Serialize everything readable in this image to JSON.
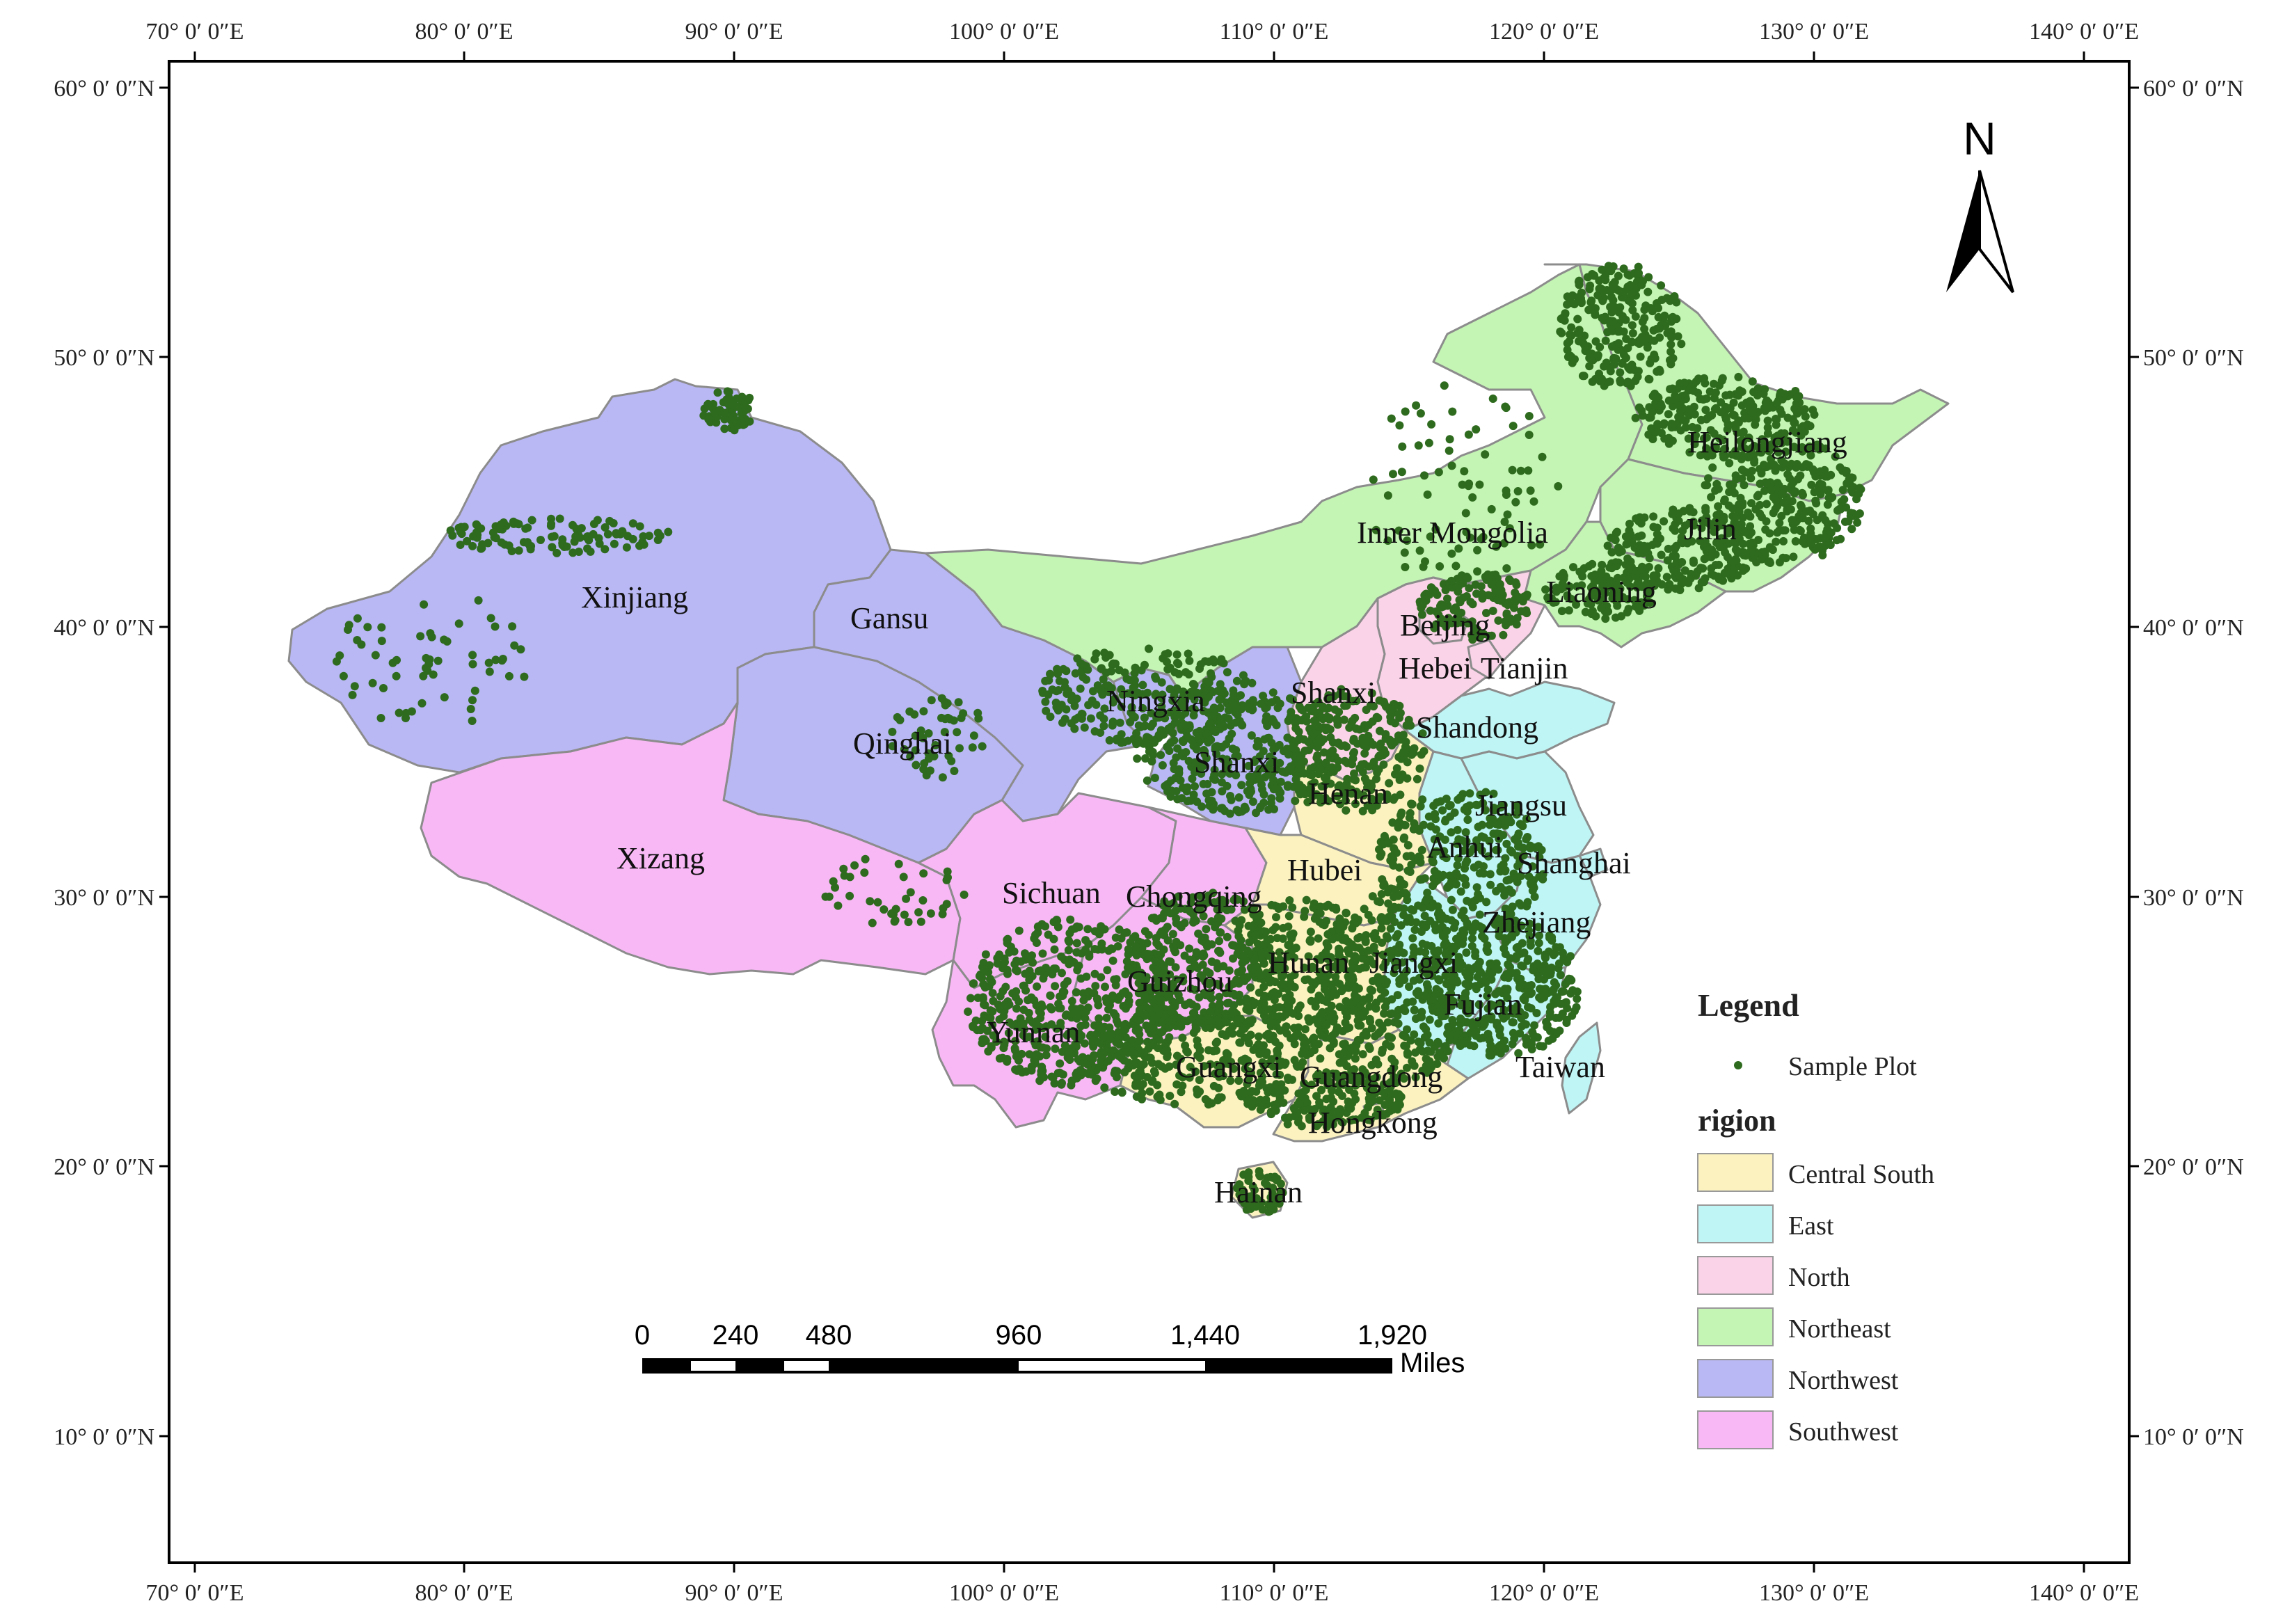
{
  "graticule": {
    "lon_labels": [
      "70° 0′ 0″E",
      "80° 0′ 0″E",
      "90° 0′ 0″E",
      "100° 0′ 0″E",
      "110° 0′ 0″E",
      "120° 0′ 0″E",
      "130° 0′ 0″E",
      "140° 0′ 0″E"
    ],
    "lat_labels": [
      "60° 0′ 0″N",
      "50° 0′ 0″N",
      "40° 0′ 0″N",
      "30° 0′ 0″N",
      "20° 0′ 0″N",
      "10° 0′ 0″N"
    ]
  },
  "north_arrow": {
    "label": "N"
  },
  "scale_bar": {
    "ticks": [
      "0",
      "240",
      "480",
      "960",
      "1,440",
      "1,920"
    ],
    "unit": "Miles"
  },
  "regions": [
    {
      "key": "central_south",
      "label": "Central South",
      "color": "#fbf2c0"
    },
    {
      "key": "east",
      "label": "East",
      "color": "#bff5f5"
    },
    {
      "key": "north",
      "label": "North",
      "color": "#fbd3e8"
    },
    {
      "key": "northeast",
      "label": "Northeast",
      "color": "#c4f5b4"
    },
    {
      "key": "northwest",
      "label": "Northwest",
      "color": "#b9b7f4"
    },
    {
      "key": "southwest",
      "label": "Southwest",
      "color": "#f8b8f5"
    }
  ],
  "province_labels": {
    "xinjiang": "Xinjiang",
    "gansu": "Gansu",
    "qinghai": "Qinghai",
    "xizang": "Xizang",
    "ningxia": "Ningxia",
    "shanxi_n": "Shanxi",
    "shanxi_s": "Shanxi",
    "inner_mongolia": "Inner Mongolia",
    "heilongjiang": "Heilongjiang",
    "jilin": "Jilin",
    "liaoning": "Liaoning",
    "beijing": "Beijing",
    "hebei": "Hebei",
    "tianjin": "Tianjin",
    "shandong": "Shandong",
    "henan": "Henan",
    "jiangsu": "Jiangsu",
    "anhui": "Anhui",
    "shanghai": "Shanghai",
    "hubei": "Hubei",
    "sichuan": "Sichuan",
    "chongqing": "Chongqing",
    "zhejiang": "Zhejiang",
    "hunan": "Hunan",
    "jiangxi": "Jiangxi",
    "guizhou": "Guizhou",
    "fujian": "Fujian",
    "yunnan": "Yunnan",
    "taiwan": "Taiwan",
    "guangxi": "Guangxi",
    "guangdong": "Guangdong",
    "hongkong": "Hongkong",
    "hainan": "Hainan"
  },
  "legend": {
    "title": "Legend",
    "point_label": "Sample Plot",
    "point_color": "#2f6b1f",
    "region_title": "rigion"
  }
}
